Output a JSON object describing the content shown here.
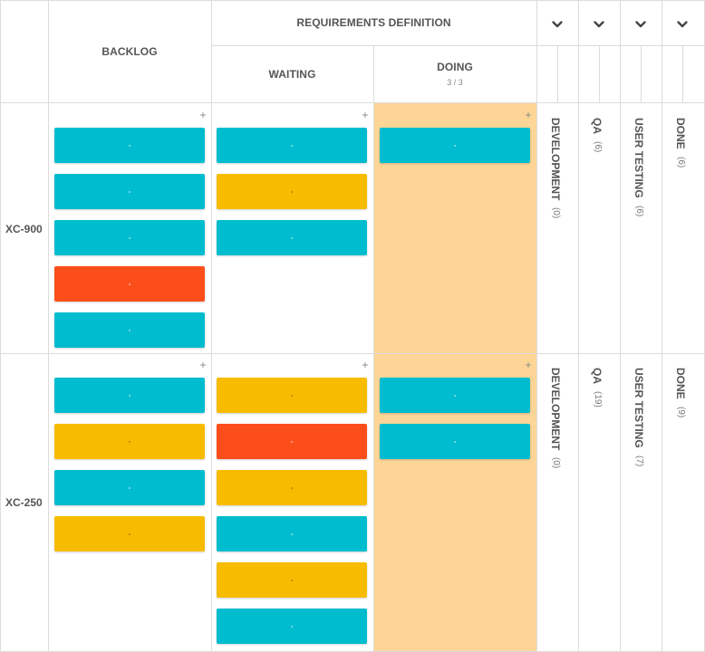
{
  "header": {
    "group_title": "REQUIREMENTS DEFINITION",
    "backlog": "BACKLOG",
    "waiting": "WAITING",
    "doing": "DOING",
    "doing_wip": "3 / 3"
  },
  "colors": {
    "teal": "#00bccf",
    "yellow": "#f7bc00",
    "orange": "#fc4e1a",
    "doing_bg": "#fdd597"
  },
  "collapsed_columns": [
    {
      "name": "DEVELOPMENT"
    },
    {
      "name": "QA"
    },
    {
      "name": "USER TESTING"
    },
    {
      "name": "DONE"
    }
  ],
  "lanes": [
    {
      "name": "XC-900",
      "add_symbol": "+",
      "backlog": [
        "teal",
        "teal",
        "teal",
        "orange",
        "teal"
      ],
      "waiting": [
        "teal",
        "yellow",
        "teal"
      ],
      "doing": [
        "teal"
      ],
      "counts": [
        "(0)",
        "(6)",
        "(6)",
        "(6)"
      ]
    },
    {
      "name": "XC-250",
      "add_symbol": "+",
      "backlog": [
        "teal",
        "yellow",
        "teal",
        "yellow"
      ],
      "waiting": [
        "yellow",
        "orange",
        "yellow",
        "teal",
        "yellow",
        "teal"
      ],
      "doing": [
        "teal",
        "teal"
      ],
      "counts": [
        "(0)",
        "(19)",
        "(7)",
        "(9)"
      ]
    }
  ]
}
